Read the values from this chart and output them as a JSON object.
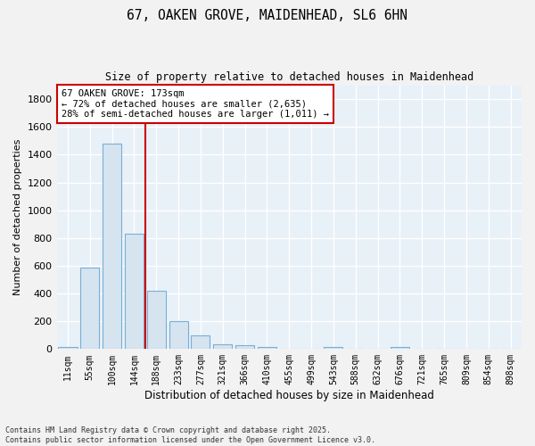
{
  "title_line1": "67, OAKEN GROVE, MAIDENHEAD, SL6 6HN",
  "title_line2": "Size of property relative to detached houses in Maidenhead",
  "xlabel": "Distribution of detached houses by size in Maidenhead",
  "ylabel": "Number of detached properties",
  "bar_fill_color": "#d6e4f0",
  "bar_edge_color": "#7aafd4",
  "categories": [
    "11sqm",
    "55sqm",
    "100sqm",
    "144sqm",
    "188sqm",
    "233sqm",
    "277sqm",
    "321sqm",
    "366sqm",
    "410sqm",
    "455sqm",
    "499sqm",
    "543sqm",
    "588sqm",
    "632sqm",
    "676sqm",
    "721sqm",
    "765sqm",
    "809sqm",
    "854sqm",
    "898sqm"
  ],
  "values": [
    18,
    585,
    1480,
    830,
    420,
    200,
    100,
    35,
    25,
    15,
    0,
    0,
    12,
    0,
    0,
    15,
    0,
    0,
    0,
    0,
    0
  ],
  "ylim": [
    0,
    1900
  ],
  "yticks": [
    0,
    200,
    400,
    600,
    800,
    1000,
    1200,
    1400,
    1600,
    1800
  ],
  "annotation_text": "67 OAKEN GROVE: 173sqm\n← 72% of detached houses are smaller (2,635)\n28% of semi-detached houses are larger (1,011) →",
  "vline_color": "#cc0000",
  "annotation_box_color": "#ffffff",
  "annotation_box_edge": "#cc0000",
  "background_color": "#e8f0f8",
  "grid_color": "#ffffff",
  "fig_bg": "#f2f2f2",
  "footer_line1": "Contains HM Land Registry data © Crown copyright and database right 2025.",
  "footer_line2": "Contains public sector information licensed under the Open Government Licence v3.0.",
  "vline_bar_index": 3
}
